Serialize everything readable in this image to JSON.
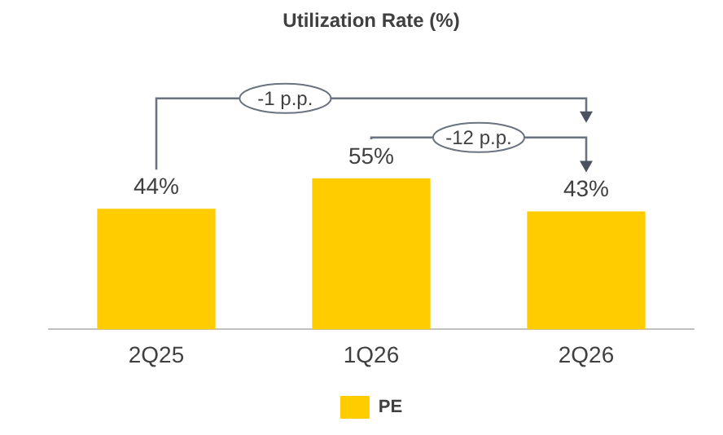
{
  "chart_data": {
    "type": "bar",
    "title": "Utilization Rate (%)",
    "categories": [
      "2Q25",
      "1Q26",
      "2Q26"
    ],
    "series": [
      {
        "name": "PE",
        "color": "#ffcc00",
        "values": [
          44,
          55,
          43
        ],
        "value_labels": [
          "44%",
          "55%",
          "43%"
        ]
      }
    ],
    "annotations": [
      "-1 p.p.",
      "-12 p.p."
    ],
    "legend": "bottom",
    "grid": false
  }
}
